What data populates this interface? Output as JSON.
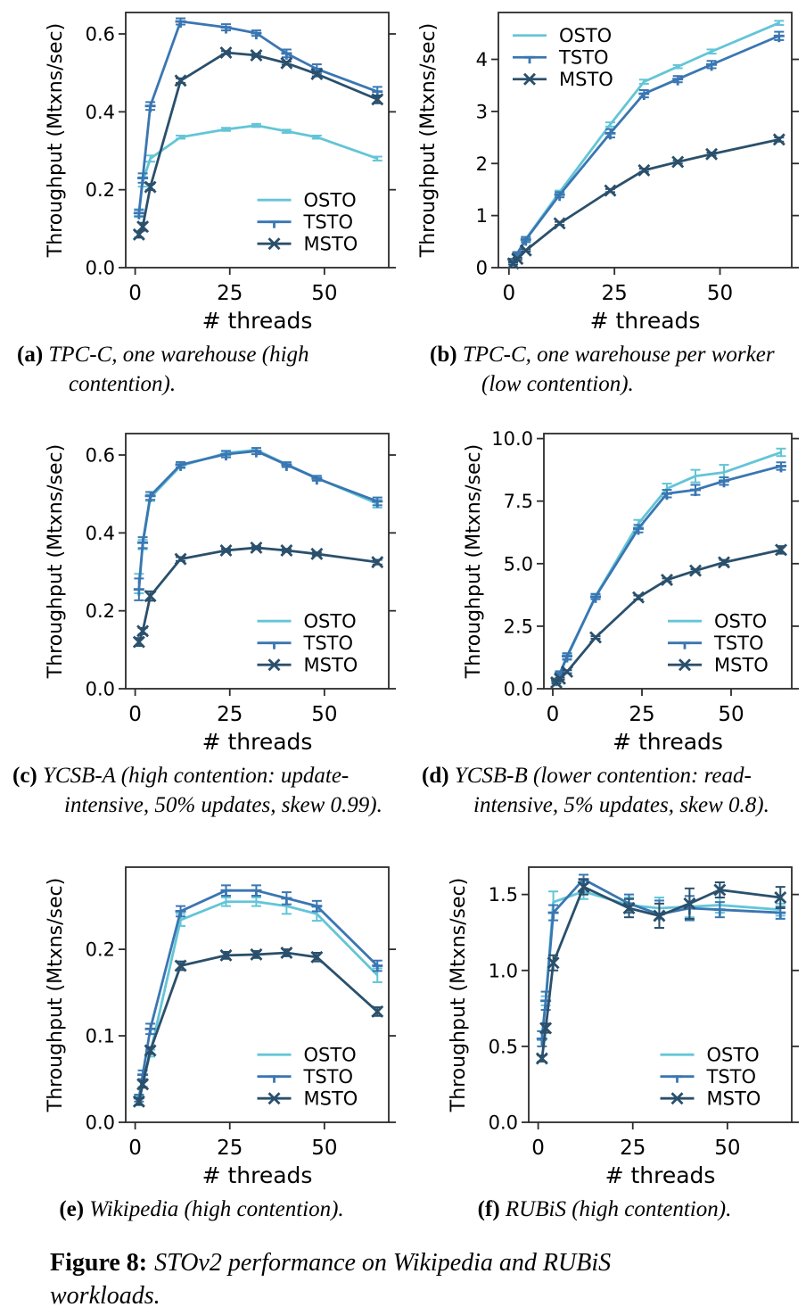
{
  "figure": {
    "caption_label": "Figure 8:",
    "caption_text": "STOv2 performance on Wikipedia and RUBiS workloads."
  },
  "shared": {
    "colors": {
      "OSTO": "#63c5d7",
      "TSTO": "#3a76b2",
      "MSTO": "#2a506c"
    },
    "spine_color": "#2b2b2b",
    "legend_entries": [
      "OSTO",
      "TSTO",
      "MSTO"
    ]
  },
  "chart_data": [
    {
      "id": "a",
      "type": "line",
      "caption_label": "(a)",
      "caption_text": "TPC-C, one warehouse (high contention).",
      "xlabel": "# threads",
      "ylabel": "Throughput (Mtxns/sec)",
      "x": [
        1,
        2,
        4,
        12,
        24,
        32,
        40,
        48,
        64
      ],
      "xlim": [
        -2.5,
        67
      ],
      "ylim": [
        0,
        0.655
      ],
      "xticks": [
        0,
        25,
        50
      ],
      "xtick_labels": [
        "0",
        "25",
        "50"
      ],
      "yticks": [
        0.0,
        0.2,
        0.4,
        0.6
      ],
      "ytick_labels": [
        "0.0",
        "0.2",
        "0.4",
        "0.6"
      ],
      "legend": "lower-right",
      "series": [
        {
          "name": "OSTO",
          "marker": "none",
          "values": [
            0.14,
            0.22,
            0.28,
            0.335,
            0.355,
            0.365,
            0.35,
            0.335,
            0.28
          ],
          "err": [
            0.01,
            0.012,
            0.008,
            0.004,
            0.004,
            0.004,
            0.004,
            0.004,
            0.005
          ]
        },
        {
          "name": "TSTO",
          "marker": "tri",
          "values": [
            0.14,
            0.23,
            0.415,
            0.632,
            0.617,
            0.602,
            0.55,
            0.51,
            0.452
          ],
          "err": [
            0.008,
            0.012,
            0.01,
            0.008,
            0.008,
            0.007,
            0.01,
            0.012,
            0.012
          ]
        },
        {
          "name": "MSTO",
          "marker": "x",
          "values": [
            0.085,
            0.105,
            0.207,
            0.48,
            0.552,
            0.545,
            0.525,
            0.497,
            0.432
          ],
          "err": [
            0.008,
            0.01,
            0.008,
            0.006,
            0.004,
            0.004,
            0.004,
            0.006,
            0.01
          ]
        }
      ]
    },
    {
      "id": "b",
      "type": "line",
      "caption_label": "(b)",
      "caption_text": "TPC-C, one warehouse per worker (low contention).",
      "xlabel": "# threads",
      "ylabel": "Throughput (Mtxns/sec)",
      "x": [
        1,
        2,
        4,
        12,
        24,
        32,
        40,
        48,
        64
      ],
      "xlim": [
        -2.5,
        67
      ],
      "ylim": [
        0,
        4.9
      ],
      "xticks": [
        0,
        25,
        50
      ],
      "xtick_labels": [
        "0",
        "25",
        "50"
      ],
      "yticks": [
        0,
        1,
        2,
        3,
        4
      ],
      "ytick_labels": [
        "0",
        "1",
        "2",
        "3",
        "4"
      ],
      "legend": "upper-left",
      "series": [
        {
          "name": "OSTO",
          "marker": "none",
          "values": [
            0.15,
            0.28,
            0.55,
            1.45,
            2.75,
            3.57,
            3.86,
            4.15,
            4.7
          ],
          "err": [
            0.02,
            0.02,
            0.03,
            0.03,
            0.04,
            0.04,
            0.03,
            0.04,
            0.04
          ]
        },
        {
          "name": "TSTO",
          "marker": "tri",
          "values": [
            0.14,
            0.27,
            0.54,
            1.4,
            2.58,
            3.34,
            3.62,
            3.9,
            4.45
          ],
          "err": [
            0.03,
            0.03,
            0.05,
            0.05,
            0.08,
            0.07,
            0.06,
            0.07,
            0.08
          ]
        },
        {
          "name": "MSTO",
          "marker": "x",
          "values": [
            0.08,
            0.17,
            0.33,
            0.85,
            1.48,
            1.87,
            2.03,
            2.18,
            2.46
          ],
          "err": [
            0.02,
            0.02,
            0.02,
            0.03,
            0.03,
            0.03,
            0.03,
            0.03,
            0.04
          ]
        }
      ]
    },
    {
      "id": "c",
      "type": "line",
      "caption_label": "(c)",
      "caption_text": "YCSB-A (high contention: update-intensive, 50% updates, skew 0.99).",
      "xlabel": "# threads",
      "ylabel": "Throughput (Mtxns/sec)",
      "x": [
        1,
        2,
        4,
        12,
        24,
        32,
        40,
        48,
        64
      ],
      "xlim": [
        -2.5,
        67
      ],
      "ylim": [
        0,
        0.655
      ],
      "xticks": [
        0,
        25,
        50
      ],
      "xtick_labels": [
        "0",
        "25",
        "50"
      ],
      "yticks": [
        0.0,
        0.2,
        0.4,
        0.6
      ],
      "ytick_labels": [
        "0.0",
        "0.2",
        "0.4",
        "0.6"
      ],
      "legend": "lower-right",
      "series": [
        {
          "name": "OSTO",
          "marker": "none",
          "values": [
            0.27,
            0.37,
            0.49,
            0.572,
            0.605,
            0.613,
            0.576,
            0.541,
            0.475
          ],
          "err": [
            0.025,
            0.012,
            0.008,
            0.006,
            0.006,
            0.005,
            0.006,
            0.006,
            0.01
          ]
        },
        {
          "name": "TSTO",
          "marker": "tri",
          "values": [
            0.255,
            0.375,
            0.495,
            0.575,
            0.602,
            0.61,
            0.575,
            0.54,
            0.481
          ],
          "err": [
            0.028,
            0.014,
            0.01,
            0.007,
            0.008,
            0.008,
            0.006,
            0.006,
            0.01
          ]
        },
        {
          "name": "MSTO",
          "marker": "x",
          "values": [
            0.12,
            0.148,
            0.238,
            0.333,
            0.355,
            0.362,
            0.355,
            0.346,
            0.325
          ],
          "err": [
            0.01,
            0.008,
            0.012,
            0.005,
            0.004,
            0.004,
            0.004,
            0.004,
            0.006
          ]
        }
      ]
    },
    {
      "id": "d",
      "type": "line",
      "caption_label": "(d)",
      "caption_text": "YCSB-B (lower contention: read-intensive, 5% updates, skew 0.8).",
      "xlabel": "# threads",
      "ylabel": "Throughput (Mtxns/sec)",
      "x": [
        1,
        2,
        4,
        12,
        24,
        32,
        40,
        48,
        64
      ],
      "xlim": [
        -2.5,
        67
      ],
      "ylim": [
        0,
        10.2
      ],
      "xticks": [
        0,
        25,
        50
      ],
      "xtick_labels": [
        "0",
        "25",
        "50"
      ],
      "yticks": [
        0.0,
        2.5,
        5.0,
        7.5,
        10.0
      ],
      "ytick_labels": [
        "0.0",
        "2.5",
        "5.0",
        "7.5",
        "10.0"
      ],
      "legend": "lower-right",
      "series": [
        {
          "name": "OSTO",
          "marker": "none",
          "values": [
            0.35,
            0.6,
            1.25,
            3.7,
            6.6,
            8.0,
            8.5,
            8.65,
            9.45
          ],
          "err": [
            0.05,
            0.05,
            0.1,
            0.1,
            0.15,
            0.2,
            0.25,
            0.3,
            0.15
          ]
        },
        {
          "name": "TSTO",
          "marker": "tri",
          "values": [
            0.35,
            0.62,
            1.3,
            3.68,
            6.4,
            7.8,
            7.95,
            8.3,
            8.9
          ],
          "err": [
            0.05,
            0.08,
            0.12,
            0.1,
            0.15,
            0.15,
            0.2,
            0.15,
            0.15
          ]
        },
        {
          "name": "MSTO",
          "marker": "x",
          "values": [
            0.25,
            0.4,
            0.68,
            2.05,
            3.65,
            4.35,
            4.72,
            5.05,
            5.55
          ],
          "err": [
            0.04,
            0.04,
            0.06,
            0.05,
            0.08,
            0.06,
            0.06,
            0.1,
            0.15
          ]
        }
      ]
    },
    {
      "id": "e",
      "type": "line",
      "caption_label": "(e)",
      "caption_text": "Wikipedia (high contention).",
      "xlabel": "# threads",
      "ylabel": "Throughput (Mtxns/sec)",
      "x": [
        1,
        2,
        4,
        12,
        24,
        32,
        40,
        48,
        64
      ],
      "xlim": [
        -2.5,
        67
      ],
      "ylim": [
        0,
        0.295
      ],
      "xticks": [
        0,
        25,
        50
      ],
      "xtick_labels": [
        "0",
        "25",
        "50"
      ],
      "yticks": [
        0.0,
        0.1,
        0.2
      ],
      "ytick_labels": [
        "0.0",
        "0.1",
        "0.2"
      ],
      "legend": "lower-right",
      "series": [
        {
          "name": "OSTO",
          "marker": "none",
          "values": [
            0.025,
            0.045,
            0.08,
            0.234,
            0.255,
            0.255,
            0.25,
            0.241,
            0.17
          ],
          "err": [
            0.005,
            0.004,
            0.004,
            0.007,
            0.005,
            0.005,
            0.009,
            0.008,
            0.008
          ]
        },
        {
          "name": "TSTO",
          "marker": "tri",
          "values": [
            0.028,
            0.055,
            0.108,
            0.244,
            0.268,
            0.268,
            0.259,
            0.25,
            0.181
          ],
          "err": [
            0.004,
            0.005,
            0.006,
            0.006,
            0.006,
            0.006,
            0.007,
            0.006,
            0.006
          ]
        },
        {
          "name": "MSTO",
          "marker": "x",
          "values": [
            0.024,
            0.044,
            0.083,
            0.181,
            0.193,
            0.194,
            0.196,
            0.191,
            0.128
          ],
          "err": [
            0.004,
            0.004,
            0.004,
            0.005,
            0.004,
            0.004,
            0.004,
            0.005,
            0.005
          ]
        }
      ]
    },
    {
      "id": "f",
      "type": "line",
      "caption_label": "(f)",
      "caption_text": "RUBiS (high contention).",
      "xlabel": "# threads",
      "ylabel": "Throughput (Mtxns/sec)",
      "x": [
        1,
        2,
        4,
        12,
        24,
        32,
        40,
        48,
        64
      ],
      "xlim": [
        -2.5,
        67
      ],
      "ylim": [
        0,
        1.68
      ],
      "xticks": [
        0,
        25,
        50
      ],
      "xtick_labels": [
        "0",
        "25",
        "50"
      ],
      "yticks": [
        0.0,
        0.5,
        1.0,
        1.5
      ],
      "ytick_labels": [
        "0.0",
        "0.5",
        "1.0",
        "1.5"
      ],
      "legend": "lower-right",
      "series": [
        {
          "name": "OSTO",
          "marker": "none",
          "values": [
            0.57,
            0.8,
            1.45,
            1.52,
            1.43,
            1.41,
            1.42,
            1.43,
            1.4
          ],
          "err": [
            0.03,
            0.03,
            0.07,
            0.05,
            0.05,
            0.07,
            0.07,
            0.05,
            0.04
          ]
        },
        {
          "name": "TSTO",
          "marker": "tri",
          "values": [
            0.55,
            0.8,
            1.38,
            1.6,
            1.44,
            1.37,
            1.41,
            1.4,
            1.38
          ],
          "err": [
            0.05,
            0.06,
            0.05,
            0.03,
            0.06,
            0.09,
            0.08,
            0.05,
            0.04
          ]
        },
        {
          "name": "MSTO",
          "marker": "x",
          "values": [
            0.42,
            0.62,
            1.05,
            1.55,
            1.41,
            1.36,
            1.44,
            1.53,
            1.48
          ],
          "err": [
            0.02,
            0.03,
            0.05,
            0.05,
            0.06,
            0.08,
            0.1,
            0.05,
            0.07
          ]
        }
      ]
    }
  ]
}
